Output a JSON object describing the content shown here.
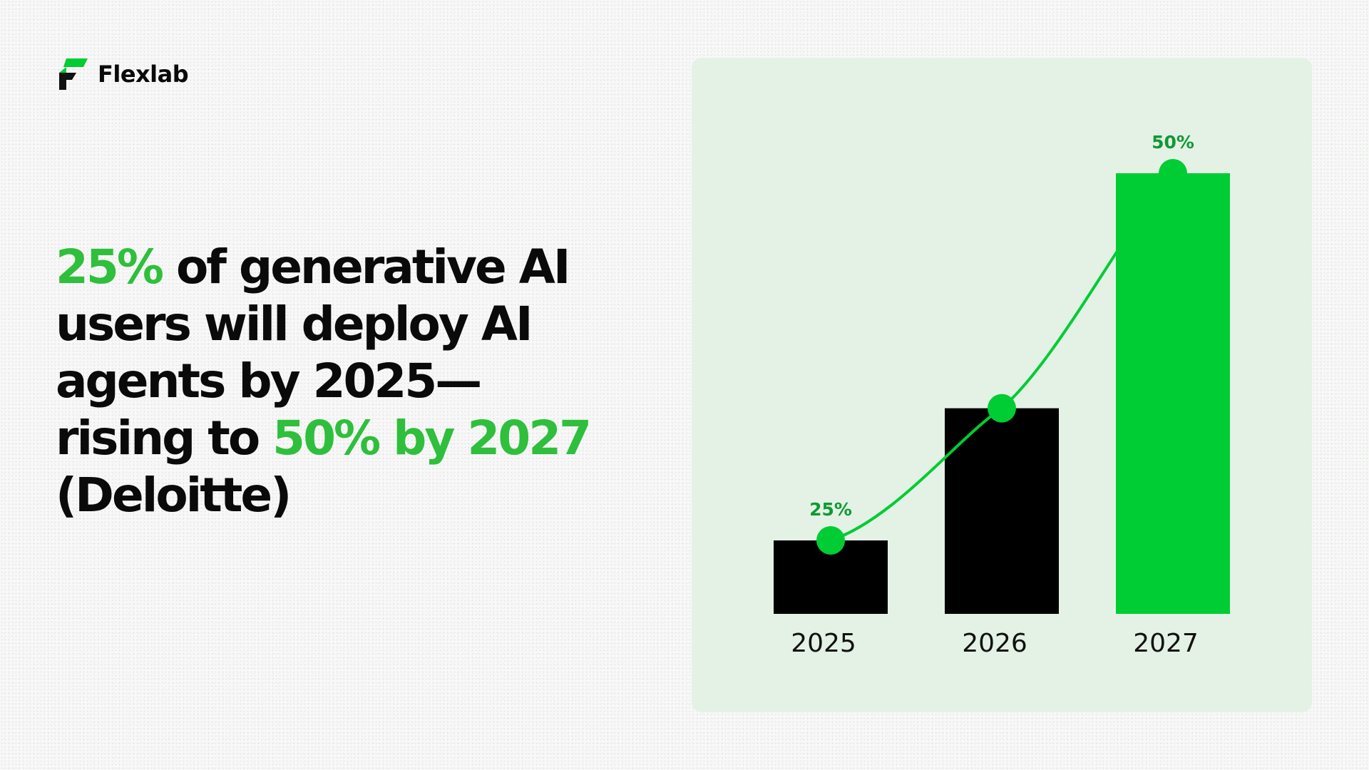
{
  "brand": {
    "name": "Flexlab",
    "logo_icon": "flexlab-logo-icon",
    "colors": {
      "dark": "#111111",
      "green": "#00cc33"
    }
  },
  "headline": {
    "segments": [
      {
        "text": "25%",
        "highlight": true
      },
      {
        "text": " of generative AI users will deploy AI agents by 2025—rising to ",
        "highlight": false
      },
      {
        "text": "50% by 2027",
        "highlight": true
      },
      {
        "text": " (Deloitte)",
        "highlight": false
      }
    ],
    "highlight_color": "#2fbf3c",
    "text_color": "#0a0a0a"
  },
  "chart_data": {
    "type": "bar",
    "categories": [
      "2025",
      "2026",
      "2027"
    ],
    "values": [
      25,
      34,
      50
    ],
    "data_labels": [
      "25%",
      "",
      "50%"
    ],
    "bar_colors": [
      "#000000",
      "#000000",
      "#00cc33"
    ],
    "trend_line": {
      "values": [
        25,
        34,
        50
      ],
      "color": "#00cc33"
    },
    "title": "",
    "xlabel": "",
    "ylabel": "",
    "ylim": [
      0,
      50
    ],
    "baseline_value": 20,
    "grid": false,
    "legend": "none",
    "label_color": "#119933"
  }
}
